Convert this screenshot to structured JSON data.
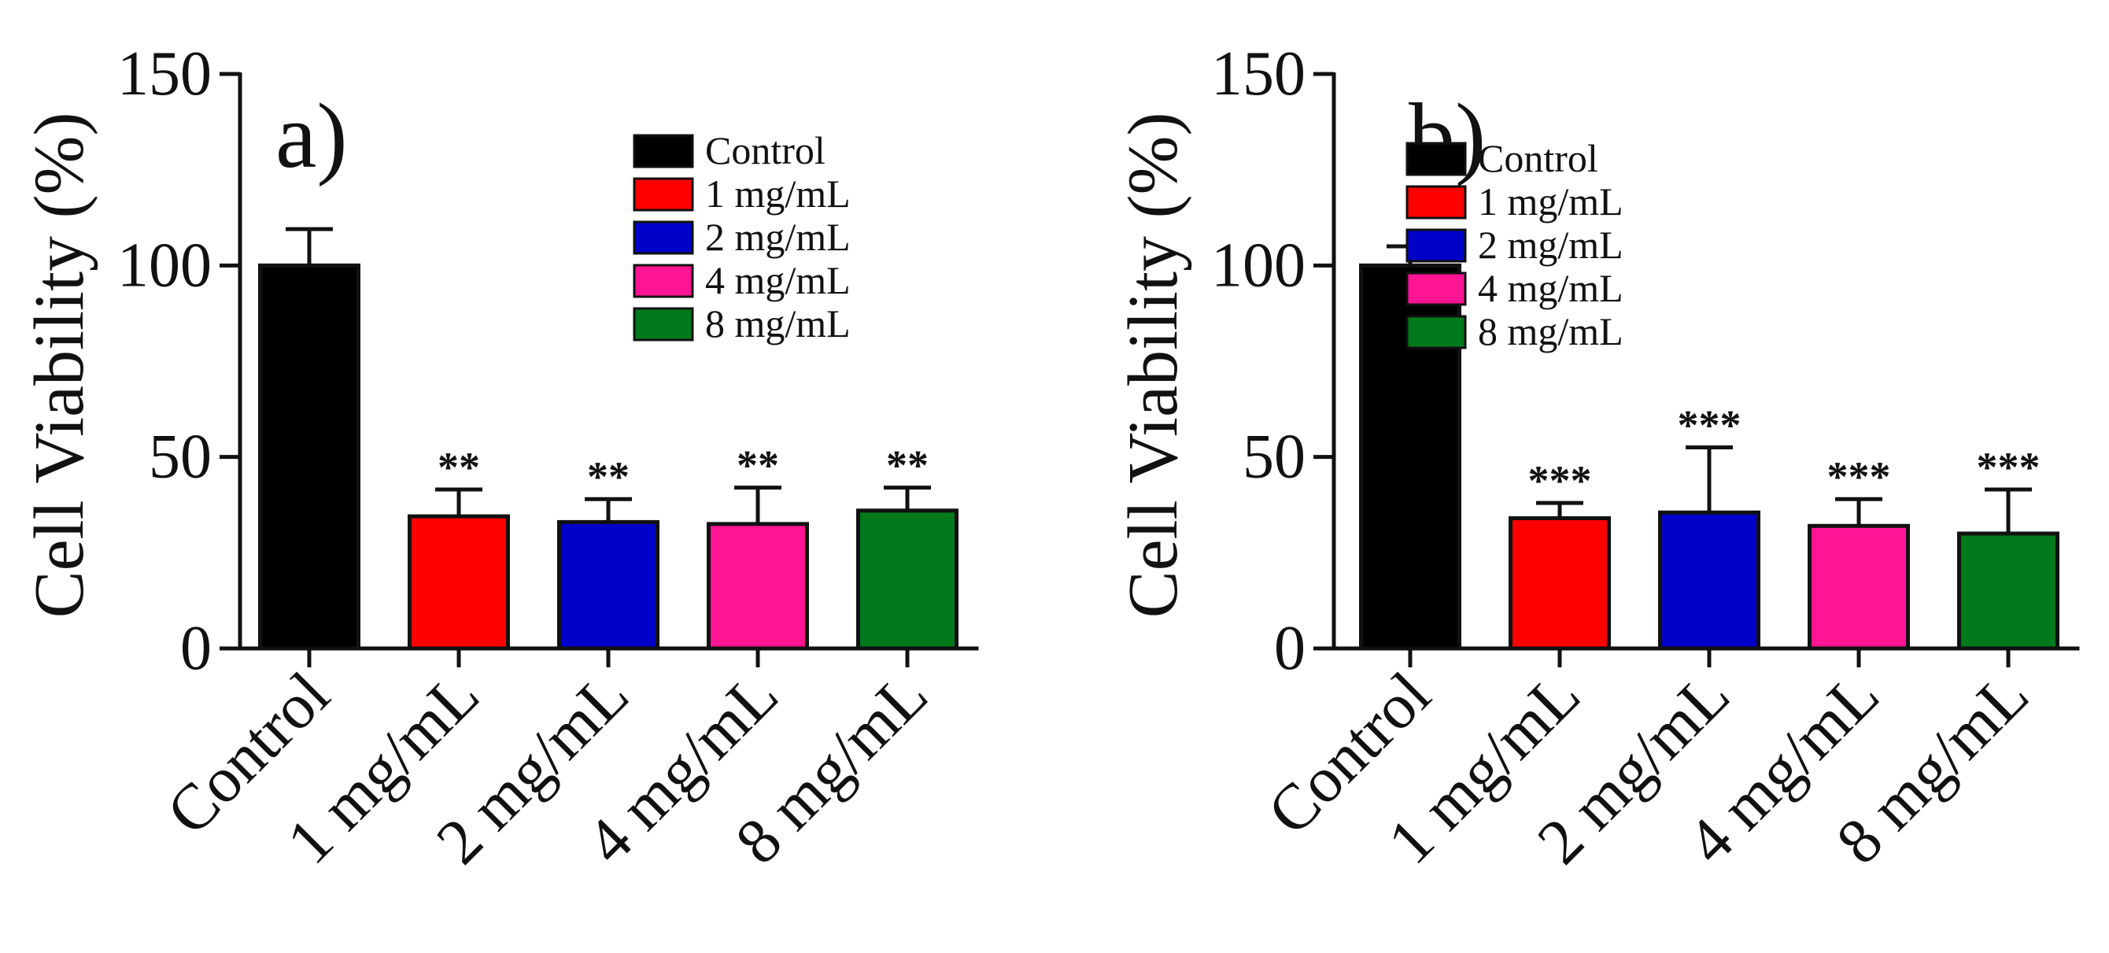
{
  "chart_data": [
    {
      "type": "bar",
      "panel_label": "a)",
      "ylabel": "Cell Viability (%)",
      "ylim": [
        0,
        150
      ],
      "yticks": [
        0,
        50,
        100,
        150
      ],
      "categories": [
        "Control",
        "1 mg/mL",
        "2 mg/mL",
        "4 mg/mL",
        "8 mg/mL"
      ],
      "values": [
        100,
        34.5,
        33,
        32.5,
        36
      ],
      "errors": [
        9.5,
        7,
        6,
        9.5,
        6
      ],
      "significance": [
        "",
        "**",
        "**",
        "**",
        "**"
      ],
      "colors": [
        "#000000",
        "#ff0000",
        "#0000c8",
        "#ff1493",
        "#007a1a"
      ],
      "legend": {
        "position": "top-right",
        "entries": [
          "Control",
          "1 mg/mL",
          "2 mg/mL",
          "4 mg/mL",
          "8 mg/mL"
        ]
      }
    },
    {
      "type": "bar",
      "panel_label": "b)",
      "ylabel": "Cell Viability (%)",
      "ylim": [
        0,
        150
      ],
      "yticks": [
        0,
        50,
        100,
        150
      ],
      "categories": [
        "Control",
        "1 mg/mL",
        "2 mg/mL",
        "4 mg/mL",
        "8 mg/mL"
      ],
      "values": [
        100,
        34,
        35.5,
        32,
        30
      ],
      "errors": [
        5,
        4,
        17,
        7,
        11.5
      ],
      "significance": [
        "",
        "***",
        "***",
        "***",
        "***"
      ],
      "colors": [
        "#000000",
        "#ff0000",
        "#0000c8",
        "#ff1493",
        "#007a1a"
      ],
      "legend": {
        "position": "top-right",
        "entries": [
          "Control",
          "1 mg/mL",
          "2 mg/mL",
          "4 mg/mL",
          "8 mg/mL"
        ]
      }
    }
  ]
}
